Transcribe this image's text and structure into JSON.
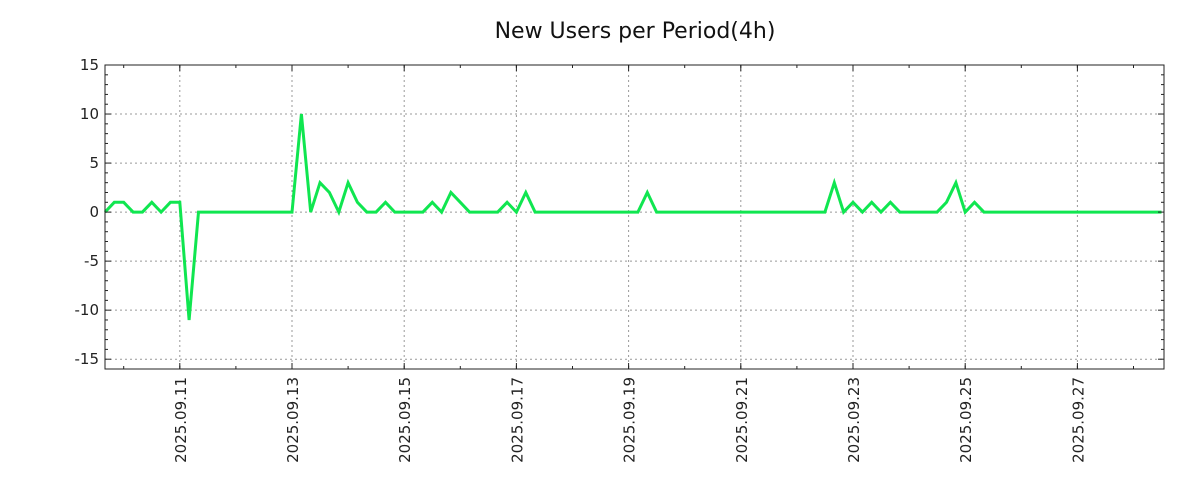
{
  "chart_data": {
    "type": "line",
    "title": "New Users per Period(4h)",
    "xlabel": "",
    "ylabel": "",
    "start": "2025-09-09 16:00",
    "period_hours": 4,
    "ylim": [
      -16,
      15
    ],
    "yticks": [
      15,
      10,
      5,
      0,
      -5,
      -10,
      -15
    ],
    "ytick_labels": [
      "15",
      "10",
      "5",
      "0",
      "-5",
      "-10",
      "-15"
    ],
    "xtick_labels": [
      "2025.09.11",
      "2025.09.13",
      "2025.09.15",
      "2025.09.17",
      "2025.09.19",
      "2025.09.21",
      "2025.09.23",
      "2025.09.25",
      "2025.09.27"
    ],
    "xtick_period_index": [
      8,
      20,
      32,
      44,
      56,
      68,
      80,
      92,
      104
    ],
    "grid": true,
    "series": [
      {
        "name": "New Users",
        "color": "#10e650",
        "values": [
          0,
          1,
          1,
          0,
          0,
          1,
          0,
          1,
          1,
          -11,
          0,
          0,
          0,
          0,
          0,
          0,
          0,
          0,
          0,
          0,
          0,
          10,
          0,
          3,
          2,
          0,
          3,
          1,
          0,
          0,
          1,
          0,
          0,
          0,
          0,
          1,
          0,
          2,
          1,
          0,
          0,
          0,
          0,
          1,
          0,
          2,
          0,
          0,
          0,
          0,
          0,
          0,
          0,
          0,
          0,
          0,
          0,
          0,
          2,
          0,
          0,
          0,
          0,
          0,
          0,
          0,
          0,
          0,
          0,
          0,
          0,
          0,
          0,
          0,
          0,
          0,
          0,
          0,
          3,
          0,
          1,
          0,
          1,
          0,
          1,
          0,
          0,
          0,
          0,
          0,
          1,
          3,
          0,
          1,
          0,
          0,
          0,
          0,
          0,
          0,
          0,
          0,
          0,
          0,
          0,
          0,
          0,
          0,
          0,
          0,
          0,
          0,
          0,
          0
        ]
      }
    ]
  }
}
